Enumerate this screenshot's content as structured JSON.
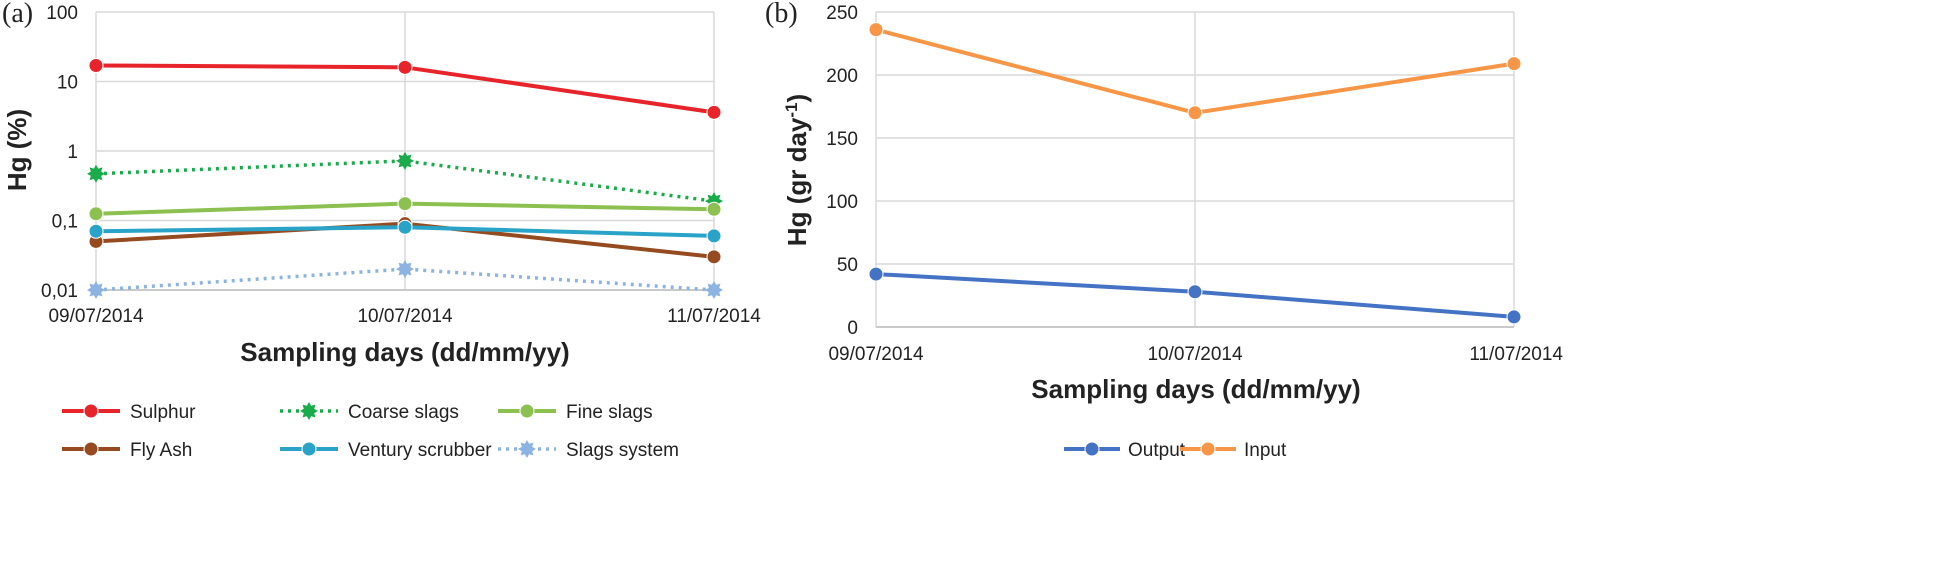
{
  "chart_data": [
    {
      "type": "line",
      "panel_label": "(a)",
      "xlabel": "Sampling days (dd/mm/yy)",
      "ylabel": "Hg (%)",
      "yscale": "log",
      "ylim": [
        0.01,
        100
      ],
      "y_ticks": [
        0.01,
        0.1,
        1,
        10,
        100
      ],
      "y_tick_labels": [
        "0,01",
        "0,1",
        "1",
        "10",
        "100"
      ],
      "categories": [
        "09/07/2014",
        "10/07/2014",
        "11/07/2014"
      ],
      "grid": true,
      "legend_position": "bottom",
      "series": [
        {
          "name": "Sulphur",
          "values": [
            17,
            16,
            3.6
          ],
          "color": "#e8242b",
          "style": "solid",
          "marker": "circle"
        },
        {
          "name": "Coarse slags",
          "values": [
            0.47,
            0.72,
            0.19
          ],
          "color": "#1aab4b",
          "style": "dotted",
          "marker": "gear"
        },
        {
          "name": "Fine slags",
          "values": [
            0.125,
            0.175,
            0.145
          ],
          "color": "#8cc152",
          "style": "solid",
          "marker": "circle"
        },
        {
          "name": "Fly Ash",
          "values": [
            0.05,
            0.09,
            0.03
          ],
          "color": "#954b1f",
          "style": "solid",
          "marker": "circle"
        },
        {
          "name": "Ventury scrubber",
          "values": [
            0.07,
            0.08,
            0.06
          ],
          "color": "#29a3c7",
          "style": "solid",
          "marker": "circle"
        },
        {
          "name": "Slags system",
          "values": [
            0.01,
            0.02,
            0.01
          ],
          "color": "#8db3e2",
          "style": "dotted",
          "marker": "gear"
        }
      ]
    },
    {
      "type": "line",
      "panel_label": "(b)",
      "xlabel": "Sampling days (dd/mm/yy)",
      "ylabel_main": "Hg (gr day",
      "ylabel_sup": "-1",
      "ylabel_end": ")",
      "ylim": [
        0,
        250
      ],
      "y_ticks": [
        0,
        50,
        100,
        150,
        200,
        250
      ],
      "y_tick_labels": [
        "0",
        "50",
        "100",
        "150",
        "200",
        "250"
      ],
      "categories": [
        "09/07/2014",
        "10/07/2014",
        "11/07/2014"
      ],
      "grid": true,
      "legend_position": "bottom",
      "series": [
        {
          "name": "Output",
          "values": [
            42,
            28,
            8
          ],
          "color": "#4472c4",
          "style": "solid",
          "marker": "circle"
        },
        {
          "name": "Input",
          "values": [
            236,
            170,
            209
          ],
          "color": "#f79646",
          "style": "solid",
          "marker": "circle"
        }
      ]
    }
  ]
}
